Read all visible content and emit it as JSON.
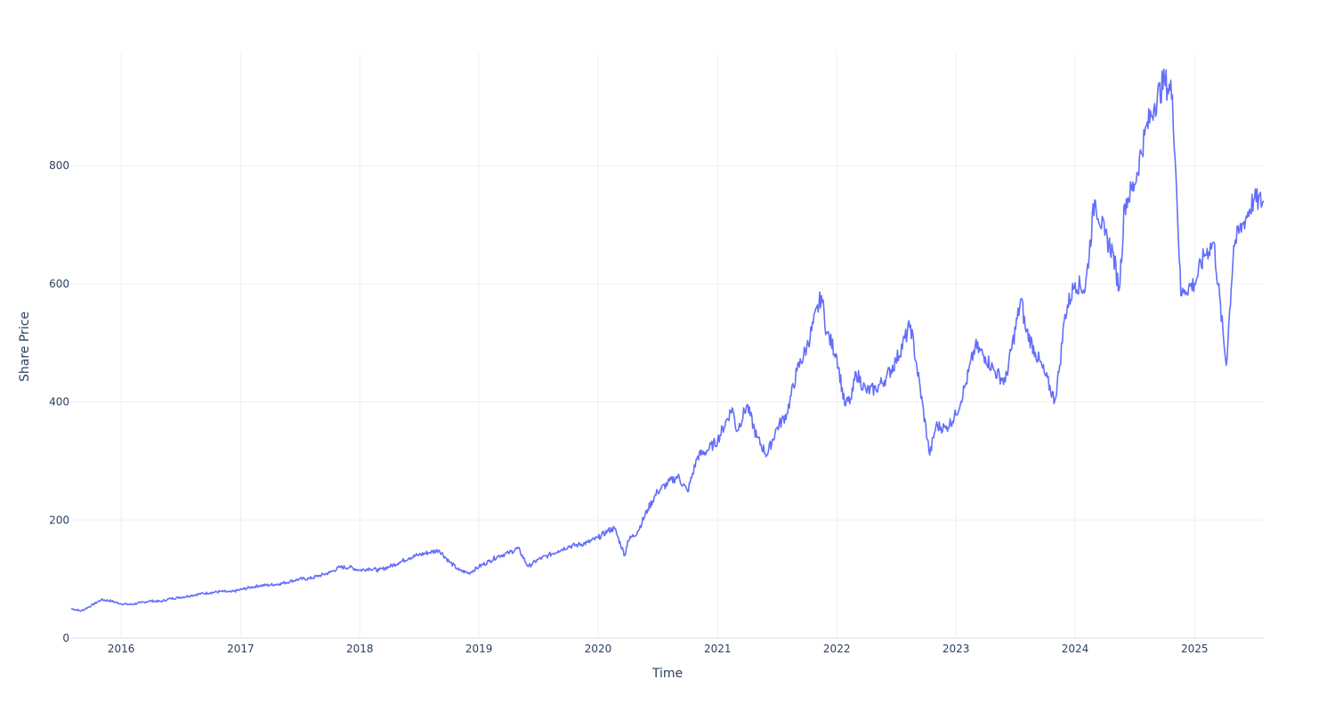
{
  "chart_data": {
    "type": "line",
    "title": "",
    "xlabel": "Time",
    "ylabel": "Share Price",
    "xlim": [
      "2015-08-01",
      "2025-08-01"
    ],
    "ylim": [
      0,
      990
    ],
    "grid": true,
    "legend": "none",
    "line_color": "#636efa",
    "x_ticks": [
      {
        "date": "2016-01-01",
        "label": "2016"
      },
      {
        "date": "2017-01-01",
        "label": "2017"
      },
      {
        "date": "2018-01-01",
        "label": "2018"
      },
      {
        "date": "2019-01-01",
        "label": "2019"
      },
      {
        "date": "2020-01-01",
        "label": "2020"
      },
      {
        "date": "2021-01-01",
        "label": "2021"
      },
      {
        "date": "2022-01-01",
        "label": "2022"
      },
      {
        "date": "2023-01-01",
        "label": "2023"
      },
      {
        "date": "2024-01-01",
        "label": "2024"
      },
      {
        "date": "2025-01-01",
        "label": "2025"
      }
    ],
    "y_ticks": [
      {
        "value": 0,
        "label": "0"
      },
      {
        "value": 200,
        "label": "200"
      },
      {
        "value": 400,
        "label": "400"
      },
      {
        "value": 600,
        "label": "600"
      },
      {
        "value": 800,
        "label": "800"
      }
    ],
    "series": [
      {
        "x": [
          "2015-08-01",
          "2015-09-01",
          "2015-10-01",
          "2015-11-01",
          "2015-12-01",
          "2016-01-01",
          "2016-02-01",
          "2016-03-01",
          "2016-04-01",
          "2016-05-01",
          "2016-06-01",
          "2016-07-01",
          "2016-08-01",
          "2016-09-01",
          "2016-10-01",
          "2016-11-01",
          "2016-12-01",
          "2017-01-01",
          "2017-02-01",
          "2017-03-01",
          "2017-04-01",
          "2017-05-01",
          "2017-06-01",
          "2017-07-01",
          "2017-08-01",
          "2017-09-01",
          "2017-10-01",
          "2017-11-01",
          "2017-12-01",
          "2018-01-01",
          "2018-02-01",
          "2018-03-01",
          "2018-04-01",
          "2018-05-01",
          "2018-06-01",
          "2018-07-01",
          "2018-08-01",
          "2018-09-01",
          "2018-10-01",
          "2018-11-01",
          "2018-12-01",
          "2019-01-01",
          "2019-02-01",
          "2019-03-01",
          "2019-04-01",
          "2019-05-01",
          "2019-06-01",
          "2019-07-01",
          "2019-08-01",
          "2019-09-01",
          "2019-10-01",
          "2019-11-01",
          "2019-12-01",
          "2020-01-01",
          "2020-02-01",
          "2020-02-20",
          "2020-03-23",
          "2020-04-01",
          "2020-05-01",
          "2020-06-01",
          "2020-07-01",
          "2020-08-01",
          "2020-09-01",
          "2020-10-01",
          "2020-11-01",
          "2020-12-01",
          "2021-01-01",
          "2021-02-15",
          "2021-03-01",
          "2021-04-01",
          "2021-05-01",
          "2021-06-01",
          "2021-07-01",
          "2021-08-01",
          "2021-09-01",
          "2021-10-01",
          "2021-11-15",
          "2021-12-01",
          "2022-01-01",
          "2022-01-25",
          "2022-02-15",
          "2022-03-01",
          "2022-04-01",
          "2022-05-01",
          "2022-06-01",
          "2022-07-01",
          "2022-08-15",
          "2022-09-01",
          "2022-10-13",
          "2022-11-01",
          "2022-12-01",
          "2023-01-01",
          "2023-02-01",
          "2023-03-01",
          "2023-04-01",
          "2023-05-01",
          "2023-06-01",
          "2023-07-20",
          "2023-08-01",
          "2023-09-01",
          "2023-10-01",
          "2023-10-31",
          "2023-11-15",
          "2023-12-01",
          "2024-01-01",
          "2024-02-01",
          "2024-03-01",
          "2024-04-01",
          "2024-04-25",
          "2024-05-15",
          "2024-06-01",
          "2024-07-01",
          "2024-08-01",
          "2024-09-01",
          "2024-10-01",
          "2024-10-25",
          "2024-11-05",
          "2024-11-20",
          "2024-12-01",
          "2025-01-01",
          "2025-02-01",
          "2025-03-01",
          "2025-04-08",
          "2025-05-01",
          "2025-06-01",
          "2025-07-01",
          "2025-08-01"
        ],
        "y": [
          50,
          46,
          55,
          65,
          63,
          58,
          57,
          60,
          63,
          62,
          67,
          69,
          72,
          75,
          77,
          79,
          78,
          82,
          86,
          89,
          90,
          92,
          96,
          100,
          101,
          106,
          111,
          120,
          120,
          115,
          118,
          115,
          121,
          128,
          136,
          141,
          145,
          149,
          130,
          115,
          110,
          121,
          130,
          139,
          144,
          152,
          121,
          133,
          140,
          148,
          155,
          158,
          162,
          170,
          182,
          186,
          140,
          165,
          180,
          218,
          248,
          262,
          274,
          248,
          308,
          318,
          335,
          390,
          350,
          395,
          340,
          310,
          355,
          380,
          452,
          492,
          580,
          518,
          478,
          395,
          405,
          450,
          418,
          422,
          441,
          469,
          530,
          468,
          310,
          360,
          355,
          378,
          432,
          494,
          476,
          451,
          434,
          575,
          526,
          484,
          446,
          402,
          462,
          548,
          602,
          590,
          742,
          682,
          655,
          590,
          735,
          768,
          852,
          905,
          944,
          920,
          785,
          580,
          590,
          600,
          650,
          670,
          462,
          665,
          705,
          742,
          738
        ]
      }
    ]
  }
}
